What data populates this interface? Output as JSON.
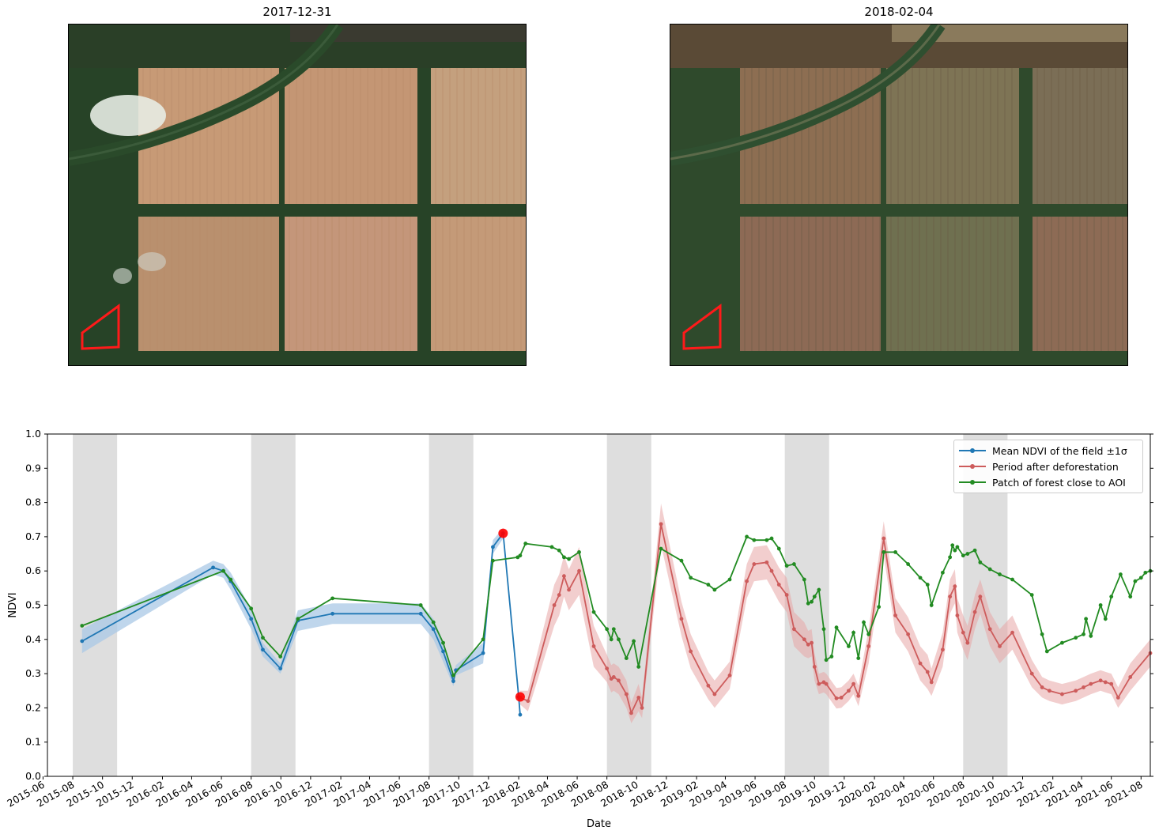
{
  "images": [
    {
      "title": "2017-12-31"
    },
    {
      "title": "2018-02-04"
    }
  ],
  "chart_data": {
    "type": "line",
    "title": "",
    "xlabel": "Date",
    "ylabel": "NDVI",
    "ylim": [
      0.0,
      1.0
    ],
    "xlim": [
      "2015-06-10",
      "2021-08-20"
    ],
    "yticks": [
      0.0,
      0.1,
      0.2,
      0.3,
      0.4,
      0.5,
      0.6,
      0.7,
      0.8,
      0.9,
      1.0
    ],
    "xticks": [
      "2015-06",
      "2015-08",
      "2015-10",
      "2015-12",
      "2016-02",
      "2016-04",
      "2016-06",
      "2016-08",
      "2016-10",
      "2016-12",
      "2017-02",
      "2017-04",
      "2017-06",
      "2017-08",
      "2017-10",
      "2017-12",
      "2018-02",
      "2018-04",
      "2018-06",
      "2018-08",
      "2018-10",
      "2018-12",
      "2019-02",
      "2019-04",
      "2019-06",
      "2019-08",
      "2019-10",
      "2019-12",
      "2020-02",
      "2020-04",
      "2020-06",
      "2020-08",
      "2020-10",
      "2020-12",
      "2021-02",
      "2021-04",
      "2021-06",
      "2021-08"
    ],
    "shaded_periods": [
      [
        "2015-08-01",
        "2015-10-31"
      ],
      [
        "2016-08-01",
        "2016-10-31"
      ],
      [
        "2017-08-01",
        "2017-10-31"
      ],
      [
        "2018-08-01",
        "2018-10-31"
      ],
      [
        "2019-08-01",
        "2019-10-31"
      ],
      [
        "2020-08-01",
        "2020-10-31"
      ]
    ],
    "grid": false,
    "legend_position": "top-right",
    "series": [
      {
        "name": "Mean NDVI of the field ±1σ",
        "color": "#1f77b4",
        "points": [
          [
            "2015-08-20",
            0.395,
            0.035
          ],
          [
            "2016-05-15",
            0.61,
            0.02
          ],
          [
            "2016-06-05",
            0.6,
            0.02
          ],
          [
            "2016-06-20",
            0.57,
            0.025
          ],
          [
            "2016-08-01",
            0.46,
            0.03
          ],
          [
            "2016-08-25",
            0.37,
            0.02
          ],
          [
            "2016-09-30",
            0.315,
            0.015
          ],
          [
            "2016-11-05",
            0.455,
            0.03
          ],
          [
            "2017-01-15",
            0.475,
            0.03
          ],
          [
            "2017-07-15",
            0.475,
            0.03
          ],
          [
            "2017-08-10",
            0.43,
            0.03
          ],
          [
            "2017-08-30",
            0.365,
            0.03
          ],
          [
            "2017-09-20",
            0.278,
            0.015
          ],
          [
            "2017-09-25",
            0.31,
            0.015
          ],
          [
            "2017-11-20",
            0.36,
            0.03
          ],
          [
            "2017-12-10",
            0.67,
            0.02
          ],
          [
            "2017-12-31",
            0.71,
            0.015
          ],
          [
            "2018-02-01",
            0.232,
            0.015
          ],
          [
            "2018-02-04",
            0.18,
            0.01
          ]
        ]
      },
      {
        "name": "Period after deforestation",
        "color": "#cd5c5c",
        "points": [
          [
            "2018-02-04",
            0.23,
            0.02
          ],
          [
            "2018-02-20",
            0.22,
            0.03
          ],
          [
            "2018-04-15",
            0.5,
            0.06
          ],
          [
            "2018-04-25",
            0.53,
            0.06
          ],
          [
            "2018-05-05",
            0.585,
            0.06
          ],
          [
            "2018-05-15",
            0.545,
            0.06
          ],
          [
            "2018-06-05",
            0.6,
            0.07
          ],
          [
            "2018-07-05",
            0.38,
            0.06
          ],
          [
            "2018-08-01",
            0.315,
            0.04
          ],
          [
            "2018-08-10",
            0.285,
            0.04
          ],
          [
            "2018-08-15",
            0.29,
            0.04
          ],
          [
            "2018-08-25",
            0.28,
            0.04
          ],
          [
            "2018-09-10",
            0.24,
            0.04
          ],
          [
            "2018-09-20",
            0.185,
            0.03
          ],
          [
            "2018-10-05",
            0.23,
            0.04
          ],
          [
            "2018-10-12",
            0.2,
            0.03
          ],
          [
            "2018-11-20",
            0.737,
            0.06
          ],
          [
            "2019-01-01",
            0.46,
            0.05
          ],
          [
            "2019-01-20",
            0.365,
            0.05
          ],
          [
            "2019-02-25",
            0.265,
            0.04
          ],
          [
            "2019-03-10",
            0.24,
            0.04
          ],
          [
            "2019-04-10",
            0.295,
            0.04
          ],
          [
            "2019-05-15",
            0.57,
            0.05
          ],
          [
            "2019-05-30",
            0.62,
            0.05
          ],
          [
            "2019-06-25",
            0.625,
            0.05
          ],
          [
            "2019-07-05",
            0.6,
            0.05
          ],
          [
            "2019-07-20",
            0.56,
            0.05
          ],
          [
            "2019-08-05",
            0.53,
            0.05
          ],
          [
            "2019-08-20",
            0.43,
            0.05
          ],
          [
            "2019-09-10",
            0.4,
            0.05
          ],
          [
            "2019-09-18",
            0.385,
            0.04
          ],
          [
            "2019-09-25",
            0.39,
            0.04
          ],
          [
            "2019-10-01",
            0.32,
            0.04
          ],
          [
            "2019-10-10",
            0.27,
            0.03
          ],
          [
            "2019-10-20",
            0.275,
            0.03
          ],
          [
            "2019-10-25",
            0.27,
            0.03
          ],
          [
            "2019-11-15",
            0.228,
            0.03
          ],
          [
            "2019-11-25",
            0.23,
            0.03
          ],
          [
            "2019-12-10",
            0.25,
            0.03
          ],
          [
            "2019-12-20",
            0.27,
            0.03
          ],
          [
            "2019-12-30",
            0.235,
            0.03
          ],
          [
            "2020-01-20",
            0.38,
            0.05
          ],
          [
            "2020-02-20",
            0.695,
            0.05
          ],
          [
            "2020-03-15",
            0.47,
            0.05
          ],
          [
            "2020-04-10",
            0.415,
            0.05
          ],
          [
            "2020-05-05",
            0.33,
            0.05
          ],
          [
            "2020-05-20",
            0.305,
            0.05
          ],
          [
            "2020-05-28",
            0.275,
            0.04
          ],
          [
            "2020-06-20",
            0.37,
            0.05
          ],
          [
            "2020-07-05",
            0.525,
            0.05
          ],
          [
            "2020-07-15",
            0.555,
            0.05
          ],
          [
            "2020-07-20",
            0.47,
            0.05
          ],
          [
            "2020-08-01",
            0.42,
            0.05
          ],
          [
            "2020-08-10",
            0.39,
            0.05
          ],
          [
            "2020-08-25",
            0.48,
            0.05
          ],
          [
            "2020-09-05",
            0.525,
            0.05
          ],
          [
            "2020-09-25",
            0.43,
            0.05
          ],
          [
            "2020-10-15",
            0.38,
            0.05
          ],
          [
            "2020-11-10",
            0.42,
            0.05
          ],
          [
            "2020-12-20",
            0.3,
            0.04
          ],
          [
            "2021-01-10",
            0.26,
            0.03
          ],
          [
            "2021-01-25",
            0.25,
            0.03
          ],
          [
            "2021-02-20",
            0.24,
            0.03
          ],
          [
            "2021-03-20",
            0.25,
            0.03
          ],
          [
            "2021-04-05",
            0.26,
            0.03
          ],
          [
            "2021-04-20",
            0.27,
            0.03
          ],
          [
            "2021-05-10",
            0.28,
            0.03
          ],
          [
            "2021-05-20",
            0.275,
            0.03
          ],
          [
            "2021-06-01",
            0.27,
            0.03
          ],
          [
            "2021-06-15",
            0.23,
            0.03
          ],
          [
            "2021-07-10",
            0.29,
            0.04
          ],
          [
            "2021-08-20",
            0.36,
            0.04
          ]
        ]
      },
      {
        "name": "Patch of forest close to AOI",
        "color": "#228b22",
        "points": [
          [
            "2015-08-20",
            0.44
          ],
          [
            "2016-06-05",
            0.6
          ],
          [
            "2016-06-20",
            0.575
          ],
          [
            "2016-08-01",
            0.49
          ],
          [
            "2016-08-25",
            0.405
          ],
          [
            "2016-09-30",
            0.35
          ],
          [
            "2016-11-05",
            0.46
          ],
          [
            "2017-01-15",
            0.52
          ],
          [
            "2017-07-15",
            0.5
          ],
          [
            "2017-08-10",
            0.45
          ],
          [
            "2017-08-30",
            0.39
          ],
          [
            "2017-09-20",
            0.295
          ],
          [
            "2017-11-20",
            0.4
          ],
          [
            "2017-12-10",
            0.63
          ],
          [
            "2018-01-30",
            0.64
          ],
          [
            "2018-02-04",
            0.645
          ],
          [
            "2018-02-15",
            0.68
          ],
          [
            "2018-04-10",
            0.67
          ],
          [
            "2018-04-25",
            0.66
          ],
          [
            "2018-05-05",
            0.64
          ],
          [
            "2018-05-15",
            0.635
          ],
          [
            "2018-06-05",
            0.655
          ],
          [
            "2018-07-05",
            0.48
          ],
          [
            "2018-08-01",
            0.43
          ],
          [
            "2018-08-10",
            0.4
          ],
          [
            "2018-08-15",
            0.43
          ],
          [
            "2018-08-25",
            0.4
          ],
          [
            "2018-09-10",
            0.345
          ],
          [
            "2018-09-25",
            0.395
          ],
          [
            "2018-10-05",
            0.32
          ],
          [
            "2018-11-20",
            0.665
          ],
          [
            "2019-01-01",
            0.63
          ],
          [
            "2019-01-20",
            0.58
          ],
          [
            "2019-02-25",
            0.56
          ],
          [
            "2019-03-10",
            0.545
          ],
          [
            "2019-04-10",
            0.575
          ],
          [
            "2019-05-15",
            0.7
          ],
          [
            "2019-05-30",
            0.69
          ],
          [
            "2019-06-25",
            0.69
          ],
          [
            "2019-07-05",
            0.695
          ],
          [
            "2019-07-20",
            0.665
          ],
          [
            "2019-08-05",
            0.615
          ],
          [
            "2019-08-20",
            0.62
          ],
          [
            "2019-09-10",
            0.575
          ],
          [
            "2019-09-18",
            0.505
          ],
          [
            "2019-09-25",
            0.51
          ],
          [
            "2019-10-01",
            0.525
          ],
          [
            "2019-10-10",
            0.545
          ],
          [
            "2019-10-20",
            0.43
          ],
          [
            "2019-10-25",
            0.34
          ],
          [
            "2019-11-05",
            0.35
          ],
          [
            "2019-11-15",
            0.435
          ],
          [
            "2019-12-10",
            0.38
          ],
          [
            "2019-12-20",
            0.42
          ],
          [
            "2019-12-30",
            0.345
          ],
          [
            "2020-01-10",
            0.45
          ],
          [
            "2020-01-20",
            0.415
          ],
          [
            "2020-02-10",
            0.495
          ],
          [
            "2020-02-20",
            0.655
          ],
          [
            "2020-03-15",
            0.655
          ],
          [
            "2020-04-10",
            0.62
          ],
          [
            "2020-05-05",
            0.58
          ],
          [
            "2020-05-20",
            0.56
          ],
          [
            "2020-05-28",
            0.5
          ],
          [
            "2020-06-20",
            0.595
          ],
          [
            "2020-07-05",
            0.64
          ],
          [
            "2020-07-10",
            0.675
          ],
          [
            "2020-07-15",
            0.66
          ],
          [
            "2020-07-20",
            0.67
          ],
          [
            "2020-08-01",
            0.645
          ],
          [
            "2020-08-10",
            0.65
          ],
          [
            "2020-08-25",
            0.66
          ],
          [
            "2020-09-05",
            0.625
          ],
          [
            "2020-09-25",
            0.605
          ],
          [
            "2020-10-15",
            0.59
          ],
          [
            "2020-11-10",
            0.575
          ],
          [
            "2020-12-20",
            0.53
          ],
          [
            "2021-01-10",
            0.415
          ],
          [
            "2021-01-20",
            0.365
          ],
          [
            "2021-02-20",
            0.39
          ],
          [
            "2021-03-20",
            0.405
          ],
          [
            "2021-04-05",
            0.415
          ],
          [
            "2021-04-10",
            0.46
          ],
          [
            "2021-04-20",
            0.41
          ],
          [
            "2021-05-10",
            0.5
          ],
          [
            "2021-05-20",
            0.46
          ],
          [
            "2021-06-01",
            0.525
          ],
          [
            "2021-06-20",
            0.59
          ],
          [
            "2021-07-10",
            0.525
          ],
          [
            "2021-07-20",
            0.57
          ],
          [
            "2021-08-01",
            0.58
          ],
          [
            "2021-08-10",
            0.595
          ],
          [
            "2021-08-20",
            0.6
          ]
        ]
      }
    ],
    "highlighted_points": [
      {
        "date": "2017-12-31",
        "value": 0.71
      },
      {
        "date": "2018-02-04",
        "value": 0.232
      }
    ]
  }
}
